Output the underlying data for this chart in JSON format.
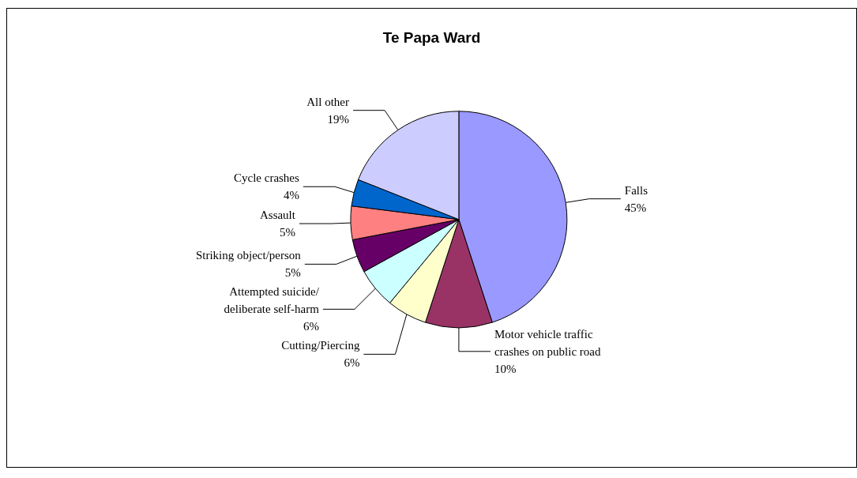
{
  "chart_data": {
    "type": "pie",
    "title": "Te Papa Ward",
    "categories": [
      "Falls",
      "Motor vehicle traffic\ncrashes on public road",
      "Cutting/Piercing",
      "Attempted suicide/\ndeliberate self-harm",
      "Striking object/person",
      "Assault",
      "Cycle crashes",
      "All other"
    ],
    "values": [
      45,
      10,
      6,
      6,
      5,
      5,
      4,
      19
    ],
    "value_labels": [
      "45%",
      "10%",
      "6%",
      "6%",
      "5%",
      "5%",
      "4%",
      "19%"
    ],
    "colors": [
      "#9999ff",
      "#993366",
      "#ffffcc",
      "#ccffff",
      "#660066",
      "#ff8080",
      "#0066cc",
      "#ccccff"
    ],
    "legend": false
  }
}
